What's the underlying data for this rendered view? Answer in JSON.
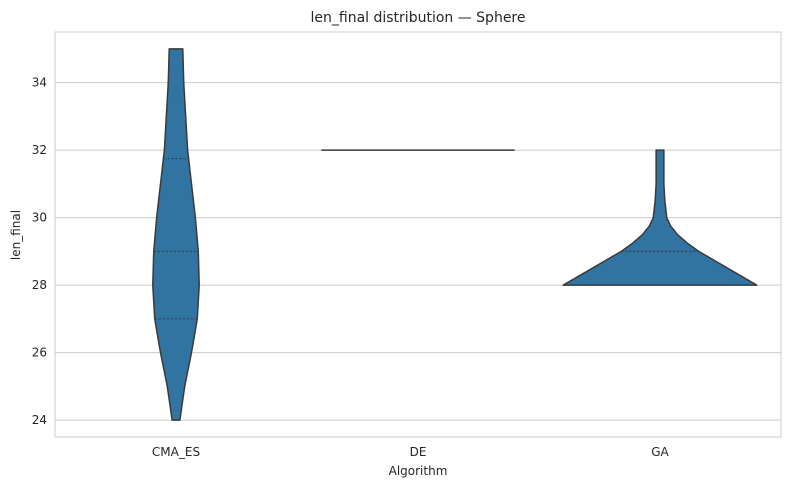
{
  "chart_data": {
    "type": "violin",
    "title": "len_final distribution — Sphere",
    "xlabel": "Algorithm",
    "ylabel": "len_final",
    "ylim": [
      23.5,
      35.5
    ],
    "yticks": [
      24,
      26,
      28,
      30,
      32,
      34
    ],
    "grid": "y",
    "color": "#3274a1",
    "edge_color": "#3a3a3a",
    "categories": [
      "CMA_ES",
      "DE",
      "GA"
    ],
    "violins": [
      {
        "category": "CMA_ES",
        "min": 24,
        "max": 35,
        "quartiles": [
          27,
          29,
          31.75
        ],
        "profile": [
          [
            24,
            0.04
          ],
          [
            25,
            0.09
          ],
          [
            26,
            0.16
          ],
          [
            27,
            0.22
          ],
          [
            28,
            0.24
          ],
          [
            29,
            0.23
          ],
          [
            30,
            0.2
          ],
          [
            31,
            0.16
          ],
          [
            32,
            0.12
          ],
          [
            33,
            0.1
          ],
          [
            34,
            0.08
          ],
          [
            35,
            0.07
          ]
        ]
      },
      {
        "category": "DE",
        "min": 32,
        "max": 32,
        "quartiles": [
          32,
          32,
          32
        ],
        "profile": [
          [
            32,
            0
          ]
        ]
      },
      {
        "category": "GA",
        "min": 28,
        "max": 32,
        "quartiles": [
          28,
          29,
          29
        ],
        "profile": [
          [
            28,
            1.0
          ],
          [
            28.25,
            0.85
          ],
          [
            28.5,
            0.7
          ],
          [
            28.75,
            0.55
          ],
          [
            29,
            0.4
          ],
          [
            29.25,
            0.28
          ],
          [
            29.5,
            0.18
          ],
          [
            29.75,
            0.11
          ],
          [
            30,
            0.07
          ],
          [
            30.5,
            0.05
          ],
          [
            31,
            0.04
          ],
          [
            31.5,
            0.04
          ],
          [
            32,
            0.04
          ]
        ]
      }
    ]
  }
}
